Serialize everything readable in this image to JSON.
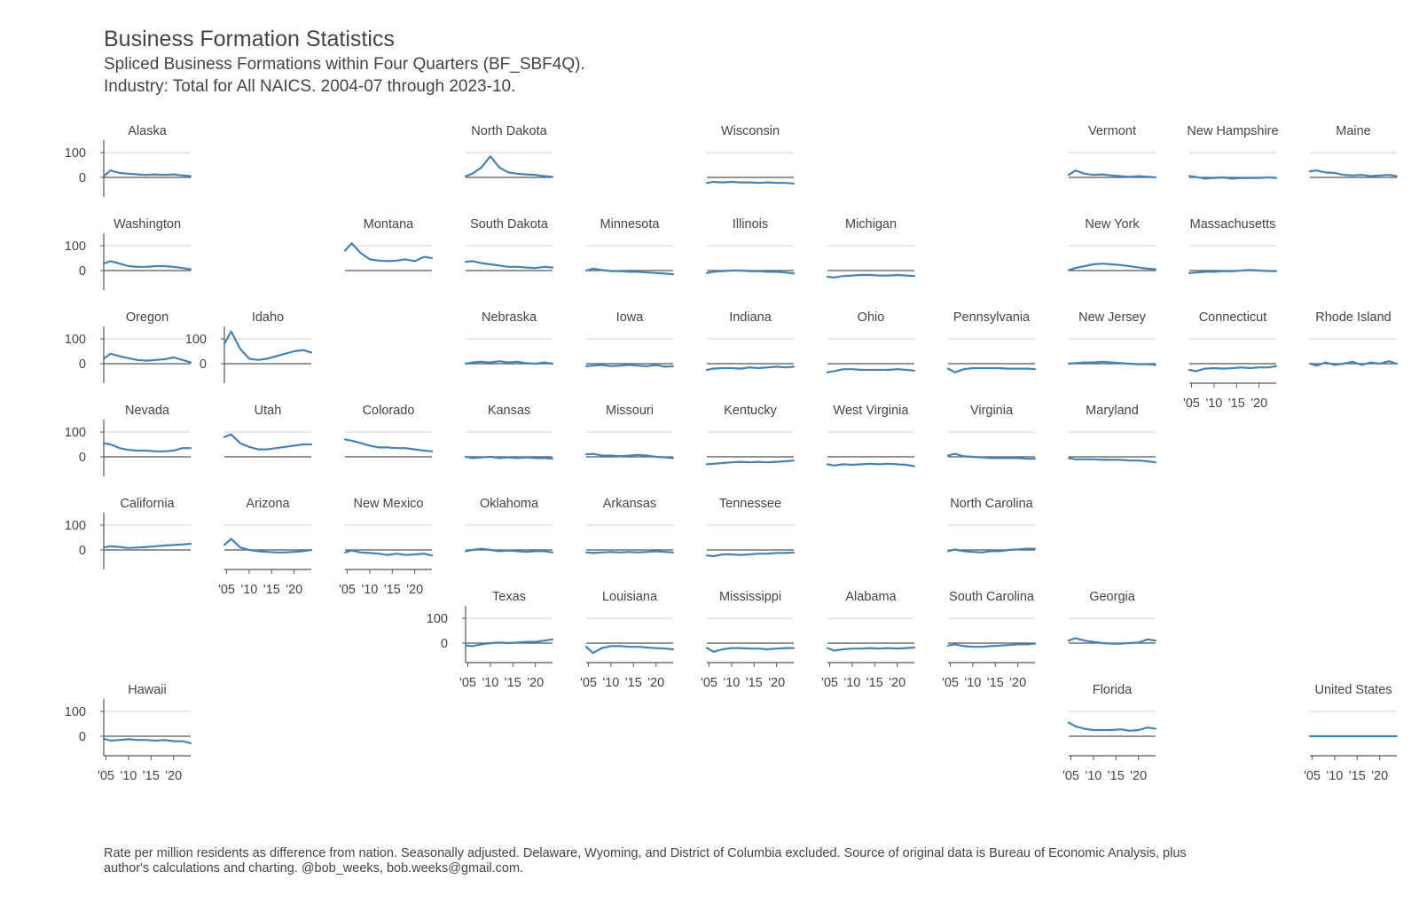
{
  "title": "Business Formation Statistics",
  "subtitle": "Spliced Business Formations within Four Quarters (BF_SBF4Q).",
  "subtitle2": "Industry: Total for All NAICS. 2004-07 through 2023-10.",
  "caption": "Rate per million residents as difference from nation. Seasonally adjusted. Delaware, Wyoming, and District of Columbia excluded. Source of original data is Bureau of Economic Analysis, plus author's calculations and charting. @bob_weeks, bob.weeks@gmail.com.",
  "colors": {
    "line": "#4682b4",
    "gridline": "#d9d9d9",
    "zeroline": "#555555",
    "axis": "#555555",
    "text": "#444444"
  },
  "chart_data": {
    "type": "line",
    "layout": "geo-facet-grid",
    "x_range": [
      2004.5,
      2023.8
    ],
    "y_range": [
      -60,
      140
    ],
    "y_ticks": [
      0,
      100
    ],
    "y_tick_labels": [
      "0",
      "100"
    ],
    "x_ticks": [
      2005,
      2010,
      2015,
      2020
    ],
    "x_tick_labels": [
      "'05",
      "'10",
      "'15",
      "'20"
    ],
    "x_years": [
      2004.5,
      2006,
      2008,
      2010,
      2012,
      2014,
      2016,
      2018,
      2020,
      2022,
      2023.8
    ],
    "panels": [
      {
        "name": "Alaska",
        "row": 0,
        "col": 0,
        "left_axis": true,
        "bottom_axis": false,
        "values": [
          5,
          28,
          18,
          15,
          12,
          10,
          12,
          10,
          12,
          8,
          5
        ]
      },
      {
        "name": "North Dakota",
        "row": 0,
        "col": 3,
        "left_axis": false,
        "bottom_axis": false,
        "values": [
          5,
          15,
          40,
          85,
          40,
          20,
          15,
          12,
          10,
          5,
          2
        ]
      },
      {
        "name": "Wisconsin",
        "row": 0,
        "col": 5,
        "left_axis": false,
        "bottom_axis": false,
        "values": [
          -22,
          -18,
          -20,
          -18,
          -20,
          -20,
          -22,
          -20,
          -22,
          -22,
          -25
        ]
      },
      {
        "name": "Vermont",
        "row": 0,
        "col": 8,
        "left_axis": false,
        "bottom_axis": false,
        "values": [
          10,
          28,
          15,
          10,
          12,
          8,
          5,
          2,
          5,
          3,
          0
        ]
      },
      {
        "name": "New Hampshire",
        "row": 0,
        "col": 9,
        "left_axis": false,
        "bottom_axis": false,
        "values": [
          5,
          2,
          -5,
          -2,
          0,
          -5,
          -2,
          -3,
          -2,
          0,
          -2
        ]
      },
      {
        "name": "Maine",
        "row": 0,
        "col": 10,
        "left_axis": false,
        "bottom_axis": false,
        "values": [
          25,
          28,
          20,
          18,
          10,
          8,
          10,
          5,
          8,
          10,
          5
        ]
      },
      {
        "name": "Washington",
        "row": 1,
        "col": 0,
        "left_axis": true,
        "bottom_axis": false,
        "values": [
          28,
          38,
          28,
          18,
          15,
          15,
          18,
          18,
          15,
          10,
          5
        ]
      },
      {
        "name": "Montana",
        "row": 1,
        "col": 2,
        "left_axis": false,
        "bottom_axis": false,
        "values": [
          80,
          110,
          70,
          45,
          40,
          38,
          40,
          45,
          38,
          55,
          50
        ]
      },
      {
        "name": "South Dakota",
        "row": 1,
        "col": 3,
        "left_axis": false,
        "bottom_axis": false,
        "values": [
          35,
          38,
          30,
          25,
          20,
          15,
          15,
          12,
          10,
          15,
          12
        ]
      },
      {
        "name": "Minnesota",
        "row": 1,
        "col": 4,
        "left_axis": false,
        "bottom_axis": false,
        "values": [
          0,
          8,
          2,
          -2,
          -2,
          -5,
          -5,
          -8,
          -10,
          -12,
          -15
        ]
      },
      {
        "name": "Illinois",
        "row": 1,
        "col": 5,
        "left_axis": false,
        "bottom_axis": false,
        "values": [
          -10,
          -5,
          -2,
          0,
          0,
          -2,
          -3,
          -5,
          -5,
          -8,
          -12
        ]
      },
      {
        "name": "Michigan",
        "row": 1,
        "col": 6,
        "left_axis": false,
        "bottom_axis": false,
        "values": [
          -25,
          -28,
          -22,
          -20,
          -18,
          -18,
          -20,
          -20,
          -18,
          -20,
          -22
        ]
      },
      {
        "name": "New York",
        "row": 1,
        "col": 8,
        "left_axis": false,
        "bottom_axis": false,
        "values": [
          2,
          10,
          18,
          25,
          28,
          25,
          22,
          18,
          12,
          8,
          5
        ]
      },
      {
        "name": "Massachusetts",
        "row": 1,
        "col": 9,
        "left_axis": false,
        "bottom_axis": false,
        "values": [
          -10,
          -8,
          -5,
          -5,
          -2,
          -3,
          0,
          2,
          0,
          -2,
          -2
        ]
      },
      {
        "name": "Oregon",
        "row": 2,
        "col": 0,
        "left_axis": true,
        "bottom_axis": false,
        "values": [
          20,
          40,
          30,
          22,
          15,
          12,
          15,
          18,
          25,
          15,
          5
        ]
      },
      {
        "name": "Idaho",
        "row": 2,
        "col": 1,
        "left_axis": true,
        "bottom_axis": false,
        "values": [
          80,
          130,
          60,
          20,
          15,
          20,
          30,
          40,
          50,
          55,
          45
        ]
      },
      {
        "name": "Nebraska",
        "row": 2,
        "col": 3,
        "left_axis": false,
        "bottom_axis": false,
        "values": [
          0,
          5,
          8,
          5,
          10,
          5,
          8,
          2,
          0,
          5,
          0
        ]
      },
      {
        "name": "Iowa",
        "row": 2,
        "col": 4,
        "left_axis": false,
        "bottom_axis": false,
        "values": [
          -10,
          -8,
          -5,
          -10,
          -8,
          -5,
          -8,
          -10,
          -5,
          -12,
          -10
        ]
      },
      {
        "name": "Indiana",
        "row": 2,
        "col": 5,
        "left_axis": false,
        "bottom_axis": false,
        "values": [
          -25,
          -20,
          -18,
          -18,
          -20,
          -15,
          -18,
          -15,
          -12,
          -15,
          -12
        ]
      },
      {
        "name": "Ohio",
        "row": 2,
        "col": 6,
        "left_axis": false,
        "bottom_axis": false,
        "values": [
          -35,
          -30,
          -22,
          -22,
          -25,
          -25,
          -25,
          -25,
          -22,
          -25,
          -28
        ]
      },
      {
        "name": "Pennsylvania",
        "row": 2,
        "col": 7,
        "left_axis": false,
        "bottom_axis": false,
        "values": [
          -20,
          -35,
          -22,
          -18,
          -18,
          -18,
          -18,
          -20,
          -20,
          -20,
          -22
        ]
      },
      {
        "name": "New Jersey",
        "row": 2,
        "col": 8,
        "left_axis": false,
        "bottom_axis": false,
        "values": [
          0,
          2,
          5,
          5,
          8,
          5,
          2,
          0,
          -2,
          -2,
          -5
        ]
      },
      {
        "name": "Connecticut",
        "row": 2,
        "col": 9,
        "left_axis": false,
        "bottom_axis": true,
        "values": [
          -25,
          -30,
          -20,
          -18,
          -20,
          -18,
          -15,
          -18,
          -15,
          -15,
          -10
        ]
      },
      {
        "name": "Rhode Island",
        "row": 2,
        "col": 10,
        "left_axis": false,
        "bottom_axis": false,
        "values": [
          0,
          -8,
          5,
          -5,
          0,
          8,
          -5,
          5,
          0,
          10,
          0
        ]
      },
      {
        "name": "Nevada",
        "row": 3,
        "col": 0,
        "left_axis": true,
        "bottom_axis": false,
        "values": [
          55,
          50,
          35,
          28,
          25,
          25,
          22,
          22,
          25,
          35,
          35
        ]
      },
      {
        "name": "Utah",
        "row": 3,
        "col": 1,
        "left_axis": false,
        "bottom_axis": false,
        "values": [
          80,
          90,
          55,
          40,
          30,
          30,
          35,
          40,
          45,
          50,
          50
        ]
      },
      {
        "name": "Colorado",
        "row": 3,
        "col": 2,
        "left_axis": false,
        "bottom_axis": false,
        "values": [
          70,
          65,
          55,
          45,
          38,
          38,
          35,
          35,
          30,
          25,
          22
        ]
      },
      {
        "name": "Kansas",
        "row": 3,
        "col": 3,
        "left_axis": false,
        "bottom_axis": false,
        "values": [
          0,
          -5,
          -2,
          0,
          -5,
          -2,
          -5,
          -2,
          -5,
          -5,
          -8
        ]
      },
      {
        "name": "Missouri",
        "row": 3,
        "col": 4,
        "left_axis": false,
        "bottom_axis": false,
        "values": [
          10,
          12,
          5,
          5,
          2,
          5,
          8,
          5,
          0,
          -2,
          -5
        ]
      },
      {
        "name": "Kentucky",
        "row": 3,
        "col": 5,
        "left_axis": false,
        "bottom_axis": false,
        "values": [
          -30,
          -28,
          -25,
          -22,
          -20,
          -22,
          -20,
          -22,
          -20,
          -18,
          -15
        ]
      },
      {
        "name": "West Virginia",
        "row": 3,
        "col": 6,
        "left_axis": false,
        "bottom_axis": false,
        "values": [
          -30,
          -35,
          -30,
          -32,
          -30,
          -28,
          -30,
          -28,
          -30,
          -32,
          -38
        ]
      },
      {
        "name": "Virginia",
        "row": 3,
        "col": 7,
        "left_axis": false,
        "bottom_axis": false,
        "values": [
          5,
          12,
          2,
          0,
          -2,
          -5,
          -5,
          -5,
          -5,
          -8,
          -8
        ]
      },
      {
        "name": "Maryland",
        "row": 3,
        "col": 8,
        "left_axis": false,
        "bottom_axis": false,
        "values": [
          -5,
          -10,
          -10,
          -10,
          -12,
          -12,
          -12,
          -15,
          -15,
          -18,
          -22
        ]
      },
      {
        "name": "California",
        "row": 4,
        "col": 0,
        "left_axis": true,
        "bottom_axis": false,
        "values": [
          10,
          15,
          12,
          8,
          10,
          12,
          15,
          18,
          20,
          22,
          25
        ]
      },
      {
        "name": "Arizona",
        "row": 4,
        "col": 1,
        "left_axis": false,
        "bottom_axis": true,
        "values": [
          20,
          45,
          10,
          0,
          -5,
          -8,
          -10,
          -10,
          -8,
          -5,
          0
        ]
      },
      {
        "name": "New Mexico",
        "row": 4,
        "col": 2,
        "left_axis": false,
        "bottom_axis": true,
        "values": [
          -10,
          -2,
          -10,
          -12,
          -15,
          -20,
          -15,
          -20,
          -18,
          -15,
          -22
        ]
      },
      {
        "name": "Oklahoma",
        "row": 4,
        "col": 3,
        "left_axis": false,
        "bottom_axis": false,
        "values": [
          -5,
          0,
          5,
          0,
          -5,
          -2,
          -5,
          -8,
          -5,
          -5,
          -10
        ]
      },
      {
        "name": "Arkansas",
        "row": 4,
        "col": 4,
        "left_axis": false,
        "bottom_axis": false,
        "values": [
          -10,
          -12,
          -10,
          -8,
          -10,
          -8,
          -10,
          -8,
          -5,
          -8,
          -10
        ]
      },
      {
        "name": "Tennessee",
        "row": 4,
        "col": 5,
        "left_axis": false,
        "bottom_axis": false,
        "values": [
          -22,
          -25,
          -18,
          -18,
          -20,
          -18,
          -15,
          -15,
          -12,
          -12,
          -10
        ]
      },
      {
        "name": "North Carolina",
        "row": 4,
        "col": 7,
        "left_axis": false,
        "bottom_axis": false,
        "values": [
          -5,
          2,
          -5,
          -8,
          -10,
          -5,
          -5,
          0,
          2,
          5,
          5
        ]
      },
      {
        "name": "Texas",
        "row": 5,
        "col": 3,
        "left_axis": true,
        "bottom_axis": true,
        "values": [
          -10,
          -12,
          -5,
          0,
          2,
          0,
          2,
          5,
          5,
          10,
          15
        ]
      },
      {
        "name": "Louisiana",
        "row": 5,
        "col": 4,
        "left_axis": false,
        "bottom_axis": true,
        "values": [
          -15,
          -40,
          -20,
          -12,
          -12,
          -15,
          -15,
          -18,
          -20,
          -22,
          -25
        ]
      },
      {
        "name": "Mississippi",
        "row": 5,
        "col": 5,
        "left_axis": false,
        "bottom_axis": true,
        "values": [
          -20,
          -35,
          -25,
          -20,
          -20,
          -22,
          -22,
          -25,
          -22,
          -20,
          -20
        ]
      },
      {
        "name": "Alabama",
        "row": 5,
        "col": 6,
        "left_axis": false,
        "bottom_axis": true,
        "values": [
          -20,
          -30,
          -25,
          -22,
          -22,
          -20,
          -22,
          -20,
          -22,
          -20,
          -18
        ]
      },
      {
        "name": "South Carolina",
        "row": 5,
        "col": 7,
        "left_axis": false,
        "bottom_axis": true,
        "values": [
          -10,
          -5,
          -12,
          -15,
          -15,
          -12,
          -10,
          -8,
          -5,
          -5,
          -2
        ]
      },
      {
        "name": "Georgia",
        "row": 5,
        "col": 8,
        "left_axis": false,
        "bottom_axis": false,
        "values": [
          10,
          20,
          10,
          5,
          0,
          -2,
          -2,
          0,
          2,
          15,
          10
        ]
      },
      {
        "name": "Hawaii",
        "row": 6,
        "col": 0,
        "left_axis": true,
        "bottom_axis": true,
        "values": [
          -10,
          -18,
          -15,
          -12,
          -15,
          -15,
          -18,
          -15,
          -20,
          -20,
          -28
        ]
      },
      {
        "name": "Florida",
        "row": 6,
        "col": 8,
        "left_axis": false,
        "bottom_axis": true,
        "values": [
          55,
          40,
          30,
          25,
          25,
          25,
          28,
          22,
          25,
          35,
          30
        ]
      },
      {
        "name": "United States",
        "row": 6,
        "col": 10,
        "left_axis": false,
        "bottom_axis": true,
        "values": [
          0,
          0,
          0,
          0,
          0,
          0,
          0,
          0,
          0,
          0,
          0
        ]
      }
    ]
  }
}
